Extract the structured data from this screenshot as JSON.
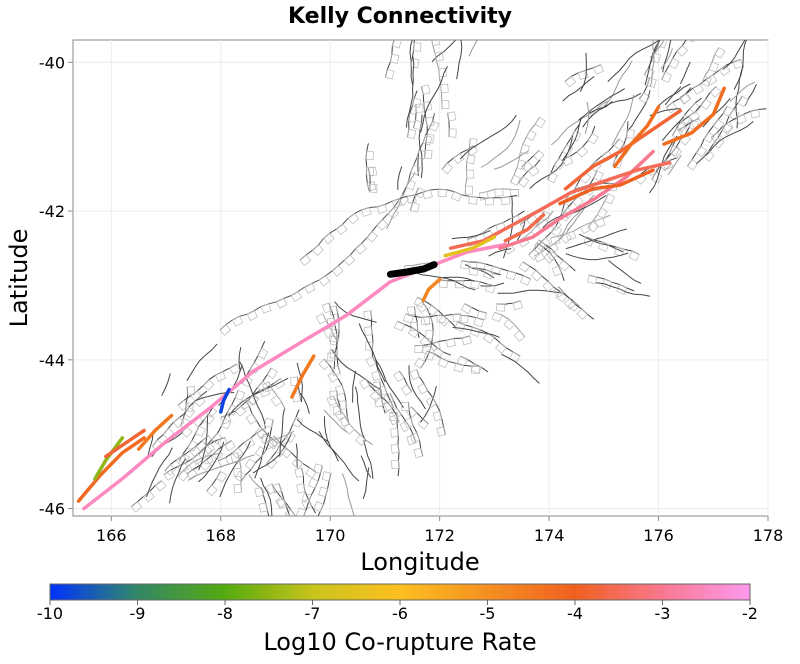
{
  "chart_data": {
    "type": "map",
    "title": "Kelly Connectivity",
    "xlabel": "Longitude",
    "ylabel": "Latitude",
    "xlim": [
      165.3,
      178.0
    ],
    "ylim": [
      -46.1,
      -39.7
    ],
    "xticks": [
      "166",
      "168",
      "170",
      "172",
      "174",
      "176",
      "178"
    ],
    "yticks": [
      "-40",
      "-42",
      "-44",
      "-46"
    ],
    "xtick_values": [
      166,
      168,
      170,
      172,
      174,
      176,
      178
    ],
    "ytick_values": [
      -40,
      -42,
      -44,
      -46
    ],
    "grid": true,
    "colorbar": {
      "label": "Log10 Co-rupture Rate",
      "ticks": [
        "-10",
        "-9",
        "-8",
        "-7",
        "-6",
        "-5",
        "-4",
        "-3",
        "-2"
      ],
      "range": [
        -10,
        -2
      ],
      "colors": [
        "#0033ff",
        "#338866",
        "#55aa11",
        "#c8c41a",
        "#ffc020",
        "#f49020",
        "#f06020",
        "#f87890",
        "#ff99ee"
      ]
    },
    "selected_fault": {
      "name": "Kelly",
      "color": "#000000",
      "path": [
        [
          171.1,
          -42.85
        ],
        [
          171.4,
          -42.82
        ],
        [
          171.7,
          -42.78
        ],
        [
          171.9,
          -42.72
        ]
      ]
    },
    "ruptures": [
      {
        "rate": -2.5,
        "path": [
          [
            165.5,
            -46.0
          ],
          [
            166.2,
            -45.6
          ],
          [
            167.0,
            -45.1
          ],
          [
            167.8,
            -44.65
          ],
          [
            168.6,
            -44.15
          ],
          [
            169.5,
            -43.75
          ],
          [
            170.3,
            -43.4
          ],
          [
            171.1,
            -42.95
          ],
          [
            171.8,
            -42.75
          ],
          [
            172.5,
            -42.55
          ],
          [
            173.2,
            -42.45
          ]
        ]
      },
      {
        "rate": -3.0,
        "path": [
          [
            173.1,
            -42.5
          ],
          [
            173.7,
            -42.35
          ],
          [
            174.2,
            -42.1
          ],
          [
            174.8,
            -41.85
          ],
          [
            175.4,
            -41.55
          ],
          [
            175.9,
            -41.2
          ]
        ]
      },
      {
        "rate": -3.5,
        "path": [
          [
            172.2,
            -42.5
          ],
          [
            172.8,
            -42.4
          ],
          [
            173.3,
            -42.2
          ],
          [
            173.8,
            -42.0
          ],
          [
            174.4,
            -41.75
          ],
          [
            175.0,
            -41.6
          ],
          [
            175.6,
            -41.45
          ],
          [
            176.2,
            -41.35
          ]
        ]
      },
      {
        "rate": -3.8,
        "path": [
          [
            174.3,
            -41.7
          ],
          [
            174.8,
            -41.4
          ],
          [
            175.3,
            -41.2
          ],
          [
            175.9,
            -40.9
          ],
          [
            176.4,
            -40.65
          ]
        ]
      },
      {
        "rate": -4.3,
        "path": [
          [
            176.1,
            -41.1
          ],
          [
            176.6,
            -40.95
          ],
          [
            177.0,
            -40.7
          ],
          [
            177.2,
            -40.35
          ]
        ]
      },
      {
        "rate": -4.0,
        "path": [
          [
            174.2,
            -41.9
          ],
          [
            174.8,
            -41.7
          ],
          [
            175.3,
            -41.65
          ],
          [
            175.9,
            -41.45
          ]
        ]
      },
      {
        "rate": -4.3,
        "path": [
          [
            175.2,
            -41.4
          ],
          [
            175.5,
            -41.1
          ],
          [
            175.8,
            -40.85
          ],
          [
            176.0,
            -40.6
          ]
        ]
      },
      {
        "rate": -3.6,
        "path": [
          [
            173.2,
            -42.4
          ],
          [
            173.6,
            -42.25
          ],
          [
            173.9,
            -42.05
          ]
        ]
      },
      {
        "rate": -6.5,
        "path": [
          [
            172.1,
            -42.6
          ],
          [
            172.6,
            -42.5
          ],
          [
            173.0,
            -42.35
          ]
        ]
      },
      {
        "rate": -4.8,
        "path": [
          [
            172.0,
            -42.92
          ],
          [
            171.8,
            -43.05
          ],
          [
            171.7,
            -43.2
          ]
        ]
      },
      {
        "rate": -4.5,
        "path": [
          [
            169.3,
            -44.5
          ],
          [
            169.5,
            -44.2
          ],
          [
            169.7,
            -43.95
          ]
        ]
      },
      {
        "rate": -9.8,
        "path": [
          [
            168.0,
            -44.7
          ],
          [
            168.05,
            -44.55
          ],
          [
            168.15,
            -44.4
          ]
        ]
      },
      {
        "rate": -4.2,
        "path": [
          [
            165.4,
            -45.9
          ],
          [
            165.8,
            -45.55
          ],
          [
            166.2,
            -45.25
          ],
          [
            166.6,
            -45.05
          ]
        ]
      },
      {
        "rate": -7.5,
        "path": [
          [
            165.7,
            -45.6
          ],
          [
            165.9,
            -45.35
          ],
          [
            166.2,
            -45.05
          ]
        ]
      },
      {
        "rate": -4.5,
        "path": [
          [
            166.5,
            -45.2
          ],
          [
            166.8,
            -44.95
          ],
          [
            167.1,
            -44.75
          ]
        ]
      },
      {
        "rate": -3.8,
        "path": [
          [
            165.9,
            -45.3
          ],
          [
            166.3,
            -45.1
          ],
          [
            166.6,
            -44.95
          ]
        ]
      }
    ]
  }
}
